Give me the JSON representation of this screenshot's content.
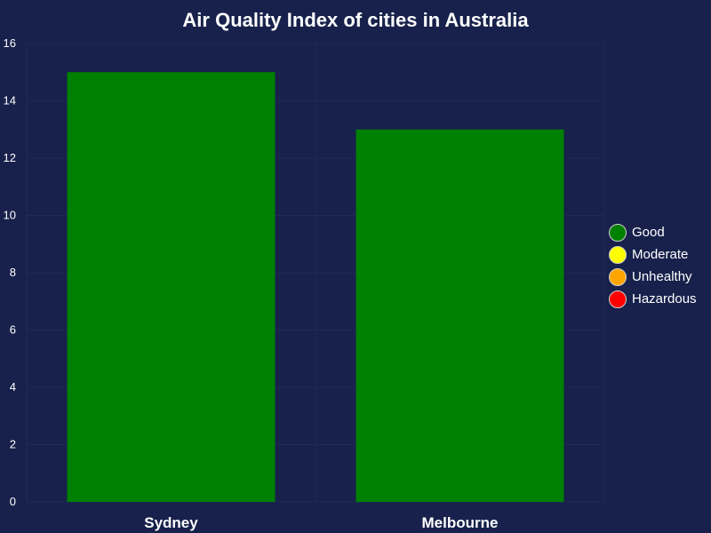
{
  "chart_data": {
    "type": "bar",
    "title": "Air Quality Index of cities in Australia",
    "categories": [
      "Sydney",
      "Melbourne"
    ],
    "values": [
      15,
      13
    ],
    "bar_colors": [
      "#008000",
      "#008000"
    ],
    "ylim": [
      0,
      16
    ],
    "yticks": [
      0,
      2,
      4,
      6,
      8,
      10,
      12,
      14,
      16
    ],
    "grid": true,
    "legend_position": "right",
    "legend": [
      {
        "label": "Good",
        "color": "#008000"
      },
      {
        "label": "Moderate",
        "color": "#ffff00"
      },
      {
        "label": "Unhealthy",
        "color": "#ffa500"
      },
      {
        "label": "Hazardous",
        "color": "#ff0000"
      }
    ],
    "background_color": "#17214b",
    "grid_color": "#1f2a55"
  }
}
